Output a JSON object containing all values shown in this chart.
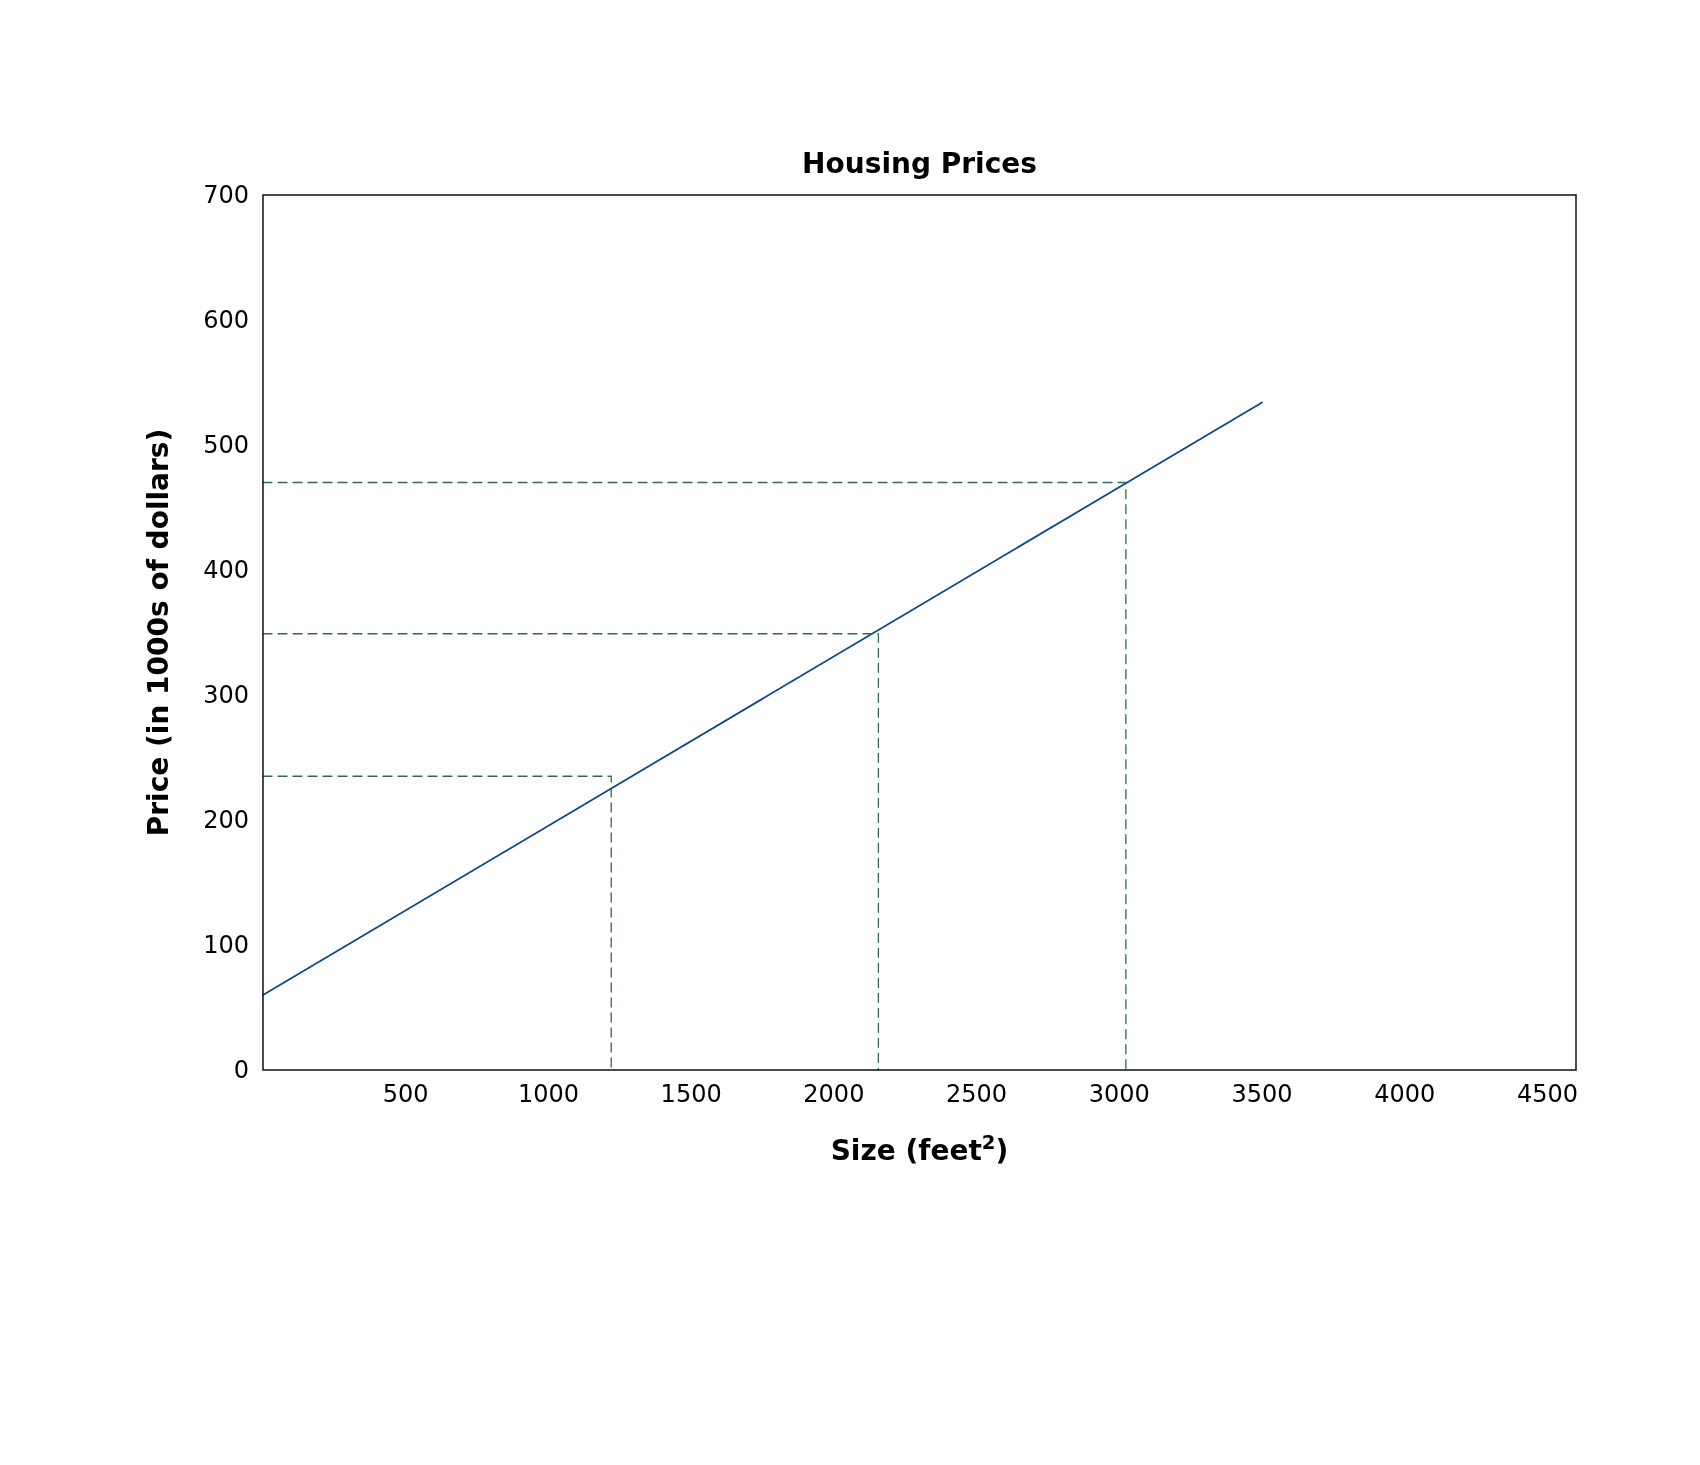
{
  "chart_data": {
    "type": "line",
    "title": "Housing Prices",
    "xlabel": "Size (feet$^{2}$)",
    "ylabel": "Price (in 1000s of dollars)",
    "xlim": [
      0,
      4600
    ],
    "ylim": [
      0,
      700
    ],
    "xticks": [
      500,
      1000,
      1500,
      2000,
      2500,
      3000,
      3500,
      4000,
      4500
    ],
    "yticks": [
      0,
      100,
      200,
      300,
      400,
      500,
      600,
      700
    ],
    "series": [
      {
        "color": "#0b4a8b",
        "x": [
          0,
          3500
        ],
        "values": [
          60,
          534
        ],
        "line_style": "solid"
      },
      {
        "color": "#2e6b50",
        "x": [
          0,
          1220,
          1220
        ],
        "values": [
          235,
          235,
          0
        ],
        "line_style": "dashed"
      },
      {
        "color": "#2e6b50",
        "x": [
          0,
          2156,
          2156
        ],
        "values": [
          349,
          349,
          0
        ],
        "line_style": "dashed"
      },
      {
        "color": "#2e6b50",
        "x": [
          0,
          3023,
          3023
        ],
        "values": [
          470,
          470,
          0
        ],
        "line_style": "dashed"
      }
    ]
  }
}
